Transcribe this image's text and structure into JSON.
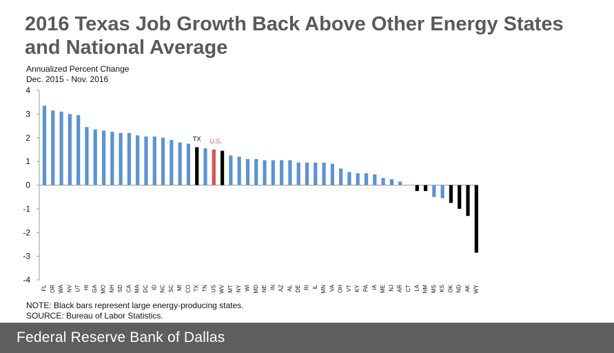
{
  "title": "2016 Texas Job Growth Back Above Other Energy States and National Average",
  "note_lines": [
    "NOTE:  Black bars represent large energy-producing states.",
    "SOURCE:  Bureau of Labor Statistics."
  ],
  "footer": {
    "brand": "Federal Reserve Bank of Dallas"
  },
  "colors": {
    "normal": "#5b93d3",
    "energy": "#000000",
    "us": "#d9534f",
    "title": "#5a5a5a",
    "footer_bg": "#5d5e60"
  },
  "chart_data": {
    "type": "bar",
    "ylabel": [
      "Annualized Percent Change",
      "Dec. 2015 - Nov. 2016"
    ],
    "ylim": [
      -4,
      4
    ],
    "yticks": [
      4,
      3,
      2,
      1,
      0,
      -1,
      -2,
      -3,
      -4
    ],
    "grid": false,
    "categories": [
      "FL",
      "OR",
      "WA",
      "NV",
      "UT",
      "HI",
      "GA",
      "MO",
      "NH",
      "SD",
      "CA",
      "MA",
      "DC",
      "ID",
      "NC",
      "SC",
      "MI",
      "CO",
      "TX",
      "TN",
      "US",
      "WV",
      "MT",
      "NY",
      "WI",
      "MD",
      "NE",
      "IN",
      "AZ",
      "AL",
      "DE",
      "RI",
      "IL",
      "MN",
      "VA",
      "OH",
      "VT",
      "KY",
      "PA",
      "IA",
      "ME",
      "NJ",
      "AR",
      "CT",
      "LA",
      "NM",
      "MS",
      "KS",
      "OK",
      "ND",
      "AK",
      "WY"
    ],
    "values": [
      3.35,
      3.15,
      3.1,
      3.0,
      2.95,
      2.45,
      2.35,
      2.3,
      2.25,
      2.2,
      2.2,
      2.1,
      2.05,
      2.05,
      2.0,
      1.9,
      1.8,
      1.75,
      1.6,
      1.55,
      1.5,
      1.45,
      1.25,
      1.2,
      1.1,
      1.1,
      1.05,
      1.05,
      1.05,
      1.05,
      0.95,
      0.95,
      0.95,
      0.95,
      0.9,
      0.7,
      0.55,
      0.5,
      0.5,
      0.45,
      0.3,
      0.25,
      0.15,
      0.0,
      -0.25,
      -0.25,
      -0.5,
      -0.55,
      -0.75,
      -1.0,
      -1.3,
      -2.85
    ],
    "energy_states": [
      "TX",
      "WV",
      "LA",
      "NM",
      "OK",
      "ND",
      "AK",
      "WY"
    ],
    "us_category": "US",
    "annotations": [
      {
        "category": "TX",
        "text": "TX",
        "color": "#000000"
      },
      {
        "category": "US",
        "text": "U.S.",
        "color": "#d9534f"
      }
    ]
  }
}
